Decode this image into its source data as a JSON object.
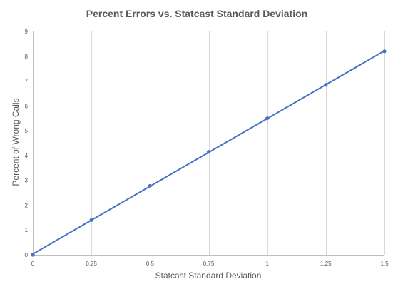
{
  "chart_data": {
    "type": "scatter",
    "title": "Percent Errors vs. Statcast Standard Deviation",
    "xlabel": "Statcast Standard Deviation",
    "ylabel": "Percent of Wrong Calls",
    "xlim": [
      0,
      1.5
    ],
    "ylim": [
      0,
      9
    ],
    "x_ticks": [
      "0",
      "0.25",
      "0.5",
      "0.75",
      "1",
      "1.25",
      "1.5"
    ],
    "y_ticks": [
      "0",
      "1",
      "2",
      "3",
      "4",
      "5",
      "6",
      "7",
      "8",
      "9"
    ],
    "grid": "vertical",
    "legend": "none",
    "series": [
      {
        "x": [
          0,
          0.25,
          0.5,
          0.75,
          1,
          1.25,
          1.5
        ],
        "y": [
          0,
          1.4,
          2.78,
          4.15,
          5.5,
          6.85,
          8.2
        ],
        "color": "#4472c4",
        "line": "linear-trendline"
      }
    ]
  }
}
